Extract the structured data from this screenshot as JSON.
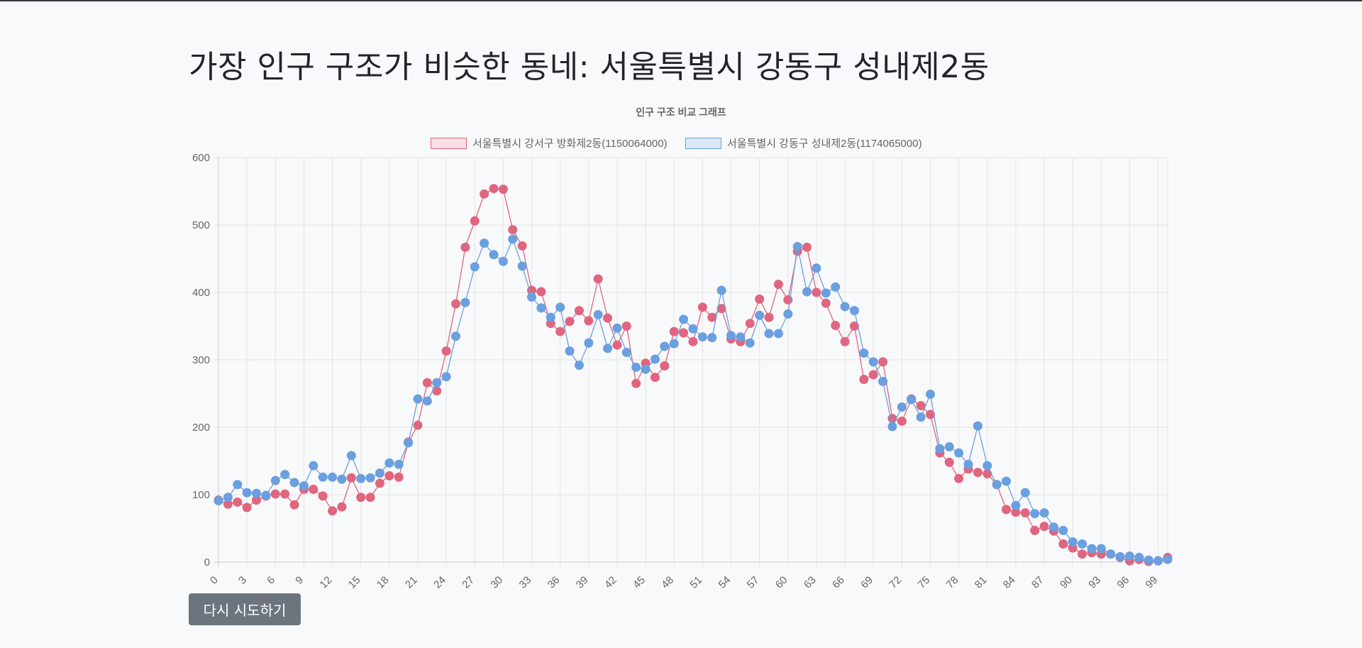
{
  "page": {
    "title": "가장 인구 구조가 비슷한 동네: 서울특별시 강동구 성내제2동",
    "retry_label": "다시 시도하기"
  },
  "colors": {
    "seriesA": "#e0657e",
    "seriesB": "#6a9fe0",
    "grid": "#e4e4e4",
    "text": "#666666"
  },
  "chart_data": {
    "type": "line",
    "title": "인구 구조 비교 그래프",
    "legend_position": "top",
    "grid": true,
    "ylim": [
      0,
      600
    ],
    "yticks": [
      0,
      100,
      200,
      300,
      400,
      500,
      600
    ],
    "xticks": [
      0,
      3,
      6,
      9,
      12,
      15,
      18,
      21,
      24,
      27,
      30,
      33,
      36,
      39,
      42,
      45,
      48,
      51,
      54,
      57,
      60,
      63,
      66,
      69,
      72,
      75,
      78,
      81,
      84,
      87,
      90,
      93,
      96,
      99
    ],
    "x": [
      0,
      1,
      2,
      3,
      4,
      5,
      6,
      7,
      8,
      9,
      10,
      11,
      12,
      13,
      14,
      15,
      16,
      17,
      18,
      19,
      20,
      21,
      22,
      23,
      24,
      25,
      26,
      27,
      28,
      29,
      30,
      31,
      32,
      33,
      34,
      35,
      36,
      37,
      38,
      39,
      40,
      41,
      42,
      43,
      44,
      45,
      46,
      47,
      48,
      49,
      50,
      51,
      52,
      53,
      54,
      55,
      56,
      57,
      58,
      59,
      60,
      61,
      62,
      63,
      64,
      65,
      66,
      67,
      68,
      69,
      70,
      71,
      72,
      73,
      74,
      75,
      76,
      77,
      78,
      79,
      80,
      81,
      82,
      83,
      84,
      85,
      86,
      87,
      88,
      89,
      90,
      91,
      92,
      93,
      94,
      95,
      96,
      97,
      98,
      99,
      100
    ],
    "series": [
      {
        "name": "서울특별시 강서구 방화제2동(1150064000)",
        "values": [
          92,
          86,
          89,
          81,
          92,
          98,
          101,
          101,
          85,
          108,
          108,
          98,
          76,
          82,
          125,
          96,
          96,
          117,
          128,
          126,
          178,
          203,
          266,
          254,
          313,
          383,
          467,
          506,
          546,
          554,
          553,
          493,
          469,
          403,
          401,
          354,
          342,
          357,
          373,
          358,
          420,
          362,
          322,
          350,
          265,
          295,
          274,
          291,
          342,
          340,
          327,
          378,
          363,
          376,
          331,
          327,
          354,
          390,
          363,
          412,
          389,
          461,
          467,
          400,
          384,
          351,
          327,
          350,
          271,
          278,
          297,
          213,
          209,
          242,
          232,
          219,
          162,
          148,
          124,
          138,
          133,
          131,
          115,
          78,
          74,
          73,
          47,
          53,
          46,
          27,
          21,
          12,
          14,
          12,
          12,
          7,
          2,
          4,
          1,
          2,
          7
        ]
      },
      {
        "name": "서울특별시 강동구 성내제2동(1174065000)",
        "values": [
          91,
          96,
          115,
          103,
          102,
          99,
          121,
          130,
          118,
          113,
          143,
          126,
          126,
          123,
          158,
          124,
          125,
          132,
          147,
          145,
          177,
          242,
          239,
          266,
          275,
          335,
          385,
          438,
          473,
          456,
          446,
          479,
          439,
          393,
          377,
          363,
          378,
          313,
          292,
          325,
          367,
          317,
          347,
          311,
          289,
          286,
          301,
          320,
          324,
          360,
          346,
          334,
          333,
          403,
          336,
          334,
          325,
          366,
          339,
          339,
          368,
          468,
          401,
          436,
          399,
          408,
          379,
          373,
          310,
          297,
          268,
          201,
          230,
          241,
          215,
          249,
          168,
          171,
          162,
          145,
          202,
          143,
          115,
          120,
          84,
          103,
          72,
          73,
          52,
          47,
          30,
          27,
          20,
          20,
          12,
          8,
          9,
          7,
          3,
          2,
          4
        ]
      }
    ]
  }
}
